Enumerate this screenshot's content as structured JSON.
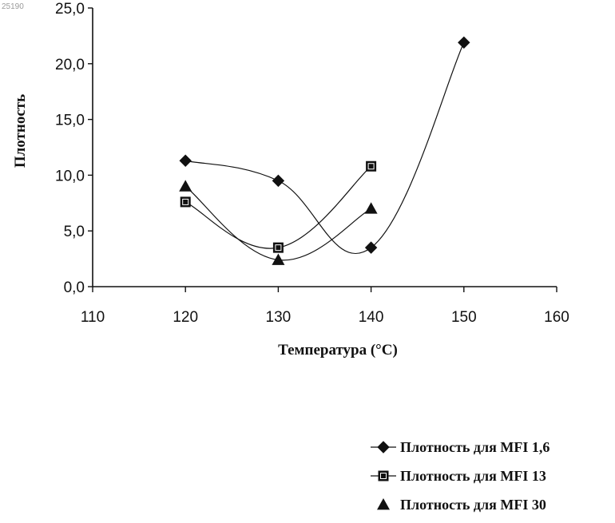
{
  "watermark": "25190",
  "chart_data": {
    "type": "line",
    "xlabel": "Температура (°C)",
    "ylabel": "Плотность",
    "xlim": [
      110,
      160
    ],
    "ylim": [
      0,
      25
    ],
    "x_ticks": [
      110,
      120,
      130,
      140,
      150,
      160
    ],
    "y_ticks": [
      0,
      5,
      10,
      15,
      20,
      25
    ],
    "x_tick_labels": [
      "110",
      "120",
      "130",
      "140",
      "150",
      "160"
    ],
    "y_tick_labels": [
      "0,0",
      "5,0",
      "10,0",
      "15,0",
      "20,0",
      "25,0"
    ],
    "grid": false,
    "legend_position": "bottom-right",
    "series": [
      {
        "name": "Плотность для MFI 1,6",
        "marker": "diamond",
        "line": true,
        "x": [
          120,
          130,
          140,
          150
        ],
        "y": [
          11.3,
          9.5,
          3.5,
          21.9
        ]
      },
      {
        "name": "Плотность для MFI 13",
        "marker": "square",
        "line": true,
        "x": [
          120,
          130,
          140
        ],
        "y": [
          7.6,
          3.5,
          10.8
        ]
      },
      {
        "name": "Плотность для MFI 30",
        "marker": "triangle",
        "line": true,
        "x": [
          120,
          130,
          140
        ],
        "y": [
          9.0,
          2.4,
          7.0
        ]
      }
    ],
    "colors": {
      "ink": "#111111"
    }
  }
}
